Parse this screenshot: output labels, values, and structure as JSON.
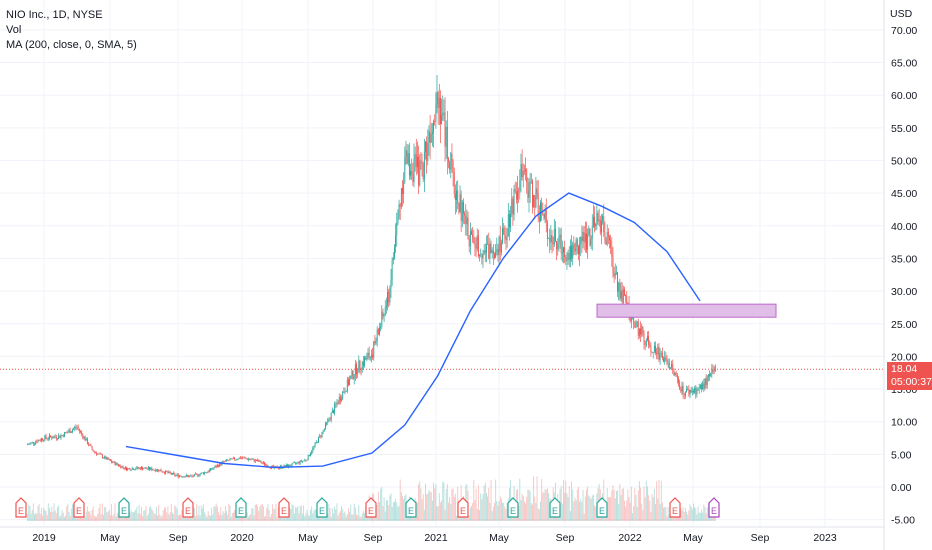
{
  "legend": {
    "symbol_line": "NIO Inc., 1D, NYSE",
    "vol_line": "Vol",
    "ma_line": "MA (200, close, 0, SMA, 5)"
  },
  "price_axis": {
    "currency": "USD",
    "ticks": [
      "70.00",
      "65.00",
      "60.00",
      "55.00",
      "50.00",
      "45.00",
      "40.00",
      "35.00",
      "30.00",
      "25.00",
      "20.00",
      "15.00",
      "10.00",
      "5.00",
      "0.00",
      "-5.00"
    ],
    "tick_values": [
      70,
      65,
      60,
      55,
      50,
      45,
      40,
      35,
      30,
      25,
      20,
      15,
      10,
      5,
      0,
      -5
    ]
  },
  "time_axis": {
    "labels": [
      "2019",
      "May",
      "Sep",
      "2020",
      "May",
      "Sep",
      "2021",
      "May",
      "Sep",
      "2022",
      "May",
      "Sep",
      "2023"
    ]
  },
  "last_price": {
    "value": "18.04",
    "countdown": "05:00:37"
  },
  "chart_data": {
    "type": "line",
    "title": "NIO Inc., 1D, NYSE",
    "ylabel": "USD",
    "ylim": [
      -5,
      72
    ],
    "x_labels": [
      "2019",
      "May",
      "Sep",
      "2020",
      "May",
      "Sep",
      "2021",
      "May",
      "Sep",
      "2022",
      "May",
      "Sep",
      "2023"
    ],
    "series": [
      {
        "name": "NIO Inc.",
        "x": [
          "2018-12",
          "2019-01",
          "2019-02",
          "2019-03",
          "2019-04",
          "2019-05",
          "2019-06",
          "2019-07",
          "2019-08",
          "2019-09",
          "2019-10",
          "2019-11",
          "2019-12",
          "2020-01",
          "2020-02",
          "2020-03",
          "2020-04",
          "2020-05",
          "2020-06",
          "2020-07",
          "2020-08",
          "2020-09",
          "2020-10",
          "2020-11",
          "2020-12",
          "2021-01",
          "2021-02",
          "2021-03",
          "2021-04",
          "2021-05",
          "2021-06",
          "2021-07",
          "2021-08",
          "2021-09",
          "2021-10",
          "2021-11",
          "2021-12",
          "2022-01",
          "2022-02",
          "2022-03",
          "2022-04",
          "2022-05",
          "2022-06"
        ],
        "values": [
          6.5,
          7.5,
          7.8,
          9.2,
          5.5,
          4.0,
          2.8,
          2.9,
          2.6,
          1.8,
          1.6,
          2.4,
          3.9,
          4.5,
          4.0,
          2.9,
          3.3,
          4.2,
          8.5,
          13.5,
          18.0,
          20.5,
          29.0,
          50.0,
          48.0,
          61.0,
          46.0,
          38.0,
          36.0,
          38.0,
          48.0,
          44.0,
          38.0,
          36.0,
          38.0,
          41.0,
          31.0,
          25.0,
          21.5,
          19.5,
          14.5,
          15.0,
          18.04
        ]
      },
      {
        "name": "MA (200, close, 0, SMA, 5)",
        "x": [
          "2019-06",
          "2019-09",
          "2019-12",
          "2020-03",
          "2020-06",
          "2020-09",
          "2020-11",
          "2021-01",
          "2021-03",
          "2021-05",
          "2021-07",
          "2021-09",
          "2021-11",
          "2022-01",
          "2022-03",
          "2022-05"
        ],
        "values": [
          6.2,
          4.9,
          3.6,
          3.0,
          3.2,
          5.2,
          9.5,
          17.0,
          27.0,
          35.0,
          41.5,
          45.0,
          43.0,
          40.5,
          36.0,
          28.5
        ]
      }
    ],
    "annotations": [
      {
        "type": "zone",
        "price_from": 26.0,
        "price_to": 28.0,
        "start": "2021-11",
        "end": "2022-08"
      }
    ],
    "earnings_flags": [
      "E",
      "E",
      "E",
      "E",
      "E",
      "E",
      "E",
      "E",
      "E",
      "E",
      "E",
      "E",
      "E",
      "E",
      "E",
      "E",
      "E"
    ]
  },
  "colors": {
    "up": "#26a69a",
    "down": "#ef5350",
    "ma": "#2962ff",
    "zone_fill": "#e1bee7",
    "zone_stroke": "#ba68c8",
    "grid": "#f0f3fa",
    "text": "#131722"
  }
}
